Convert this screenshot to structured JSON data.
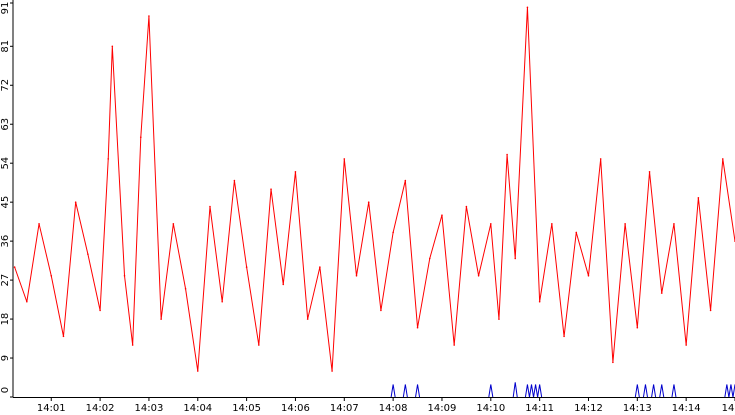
{
  "chart_data": {
    "type": "line",
    "title": "",
    "xlabel": "",
    "ylabel": "",
    "ylim": [
      0,
      91
    ],
    "y_ticks": [
      "0",
      "9",
      "18",
      "27",
      "36",
      "45",
      "54",
      "63",
      "72",
      "81",
      "91"
    ],
    "x_tick_labels": [
      "14:01",
      "14:02",
      "14:03",
      "14:04",
      "14:05",
      "14:06",
      "14:07",
      "14:08",
      "14:09",
      "14:10",
      "14:11",
      "14:12",
      "14:13",
      "14:14",
      "14"
    ],
    "x_range": [
      "14:00:13",
      "14:15:00"
    ],
    "grid": false,
    "colors": {
      "main_series": "#ff0000",
      "secondary_series": "#0000cc",
      "axis": "#000000"
    },
    "series": [
      {
        "color": "#ff0000",
        "x": [
          "14:00:15",
          "14:00:30",
          "14:00:45",
          "14:01:00",
          "14:01:15",
          "14:01:30",
          "14:01:45",
          "14:02:00",
          "14:02:10",
          "14:02:15",
          "14:02:30",
          "14:02:40",
          "14:02:50",
          "14:03:00",
          "14:03:15",
          "14:03:30",
          "14:03:45",
          "14:04:00",
          "14:04:15",
          "14:04:30",
          "14:04:45",
          "14:05:00",
          "14:05:15",
          "14:05:30",
          "14:05:45",
          "14:06:00",
          "14:06:15",
          "14:06:30",
          "14:06:45",
          "14:07:00",
          "14:07:15",
          "14:07:30",
          "14:07:45",
          "14:08:00",
          "14:08:15",
          "14:08:30",
          "14:08:45",
          "14:09:00",
          "14:09:15",
          "14:09:30",
          "14:09:45",
          "14:10:00",
          "14:10:10",
          "14:10:20",
          "14:10:30",
          "14:10:45",
          "14:11:00",
          "14:11:15",
          "14:11:30",
          "14:11:45",
          "14:12:00",
          "14:12:15",
          "14:12:30",
          "14:12:45",
          "14:13:00",
          "14:13:15",
          "14:13:30",
          "14:13:45",
          "14:14:00",
          "14:14:15",
          "14:14:30",
          "14:14:45",
          "14:15:00"
        ],
        "y": [
          30,
          22,
          40,
          28,
          14,
          45,
          33,
          20,
          55,
          81,
          28,
          12,
          60,
          88,
          18,
          40,
          25,
          6,
          44,
          22,
          50,
          30,
          12,
          48,
          26,
          52,
          18,
          30,
          6,
          55,
          28,
          45,
          20,
          38,
          50,
          16,
          32,
          42,
          12,
          44,
          28,
          40,
          18,
          56,
          32,
          90,
          22,
          40,
          14,
          38,
          28,
          55,
          8,
          40,
          16,
          52,
          24,
          40,
          12,
          46,
          20,
          55,
          36
        ]
      },
      {
        "color": "#0000cc",
        "x": [
          "14:08:00",
          "14:08:15",
          "14:08:30",
          "14:10:00",
          "14:10:30",
          "14:10:45",
          "14:10:50",
          "14:10:55",
          "14:11:00",
          "14:13:00",
          "14:13:10",
          "14:13:20",
          "14:13:30",
          "14:13:45",
          "14:14:50",
          "14:14:55",
          "14:15:00"
        ],
        "y": [
          1.5,
          1.5,
          1.5,
          1.5,
          2,
          1.5,
          1.5,
          1.5,
          1.5,
          1.5,
          1.5,
          1.5,
          1.5,
          1.5,
          1.5,
          1.5,
          1.5
        ]
      }
    ]
  }
}
